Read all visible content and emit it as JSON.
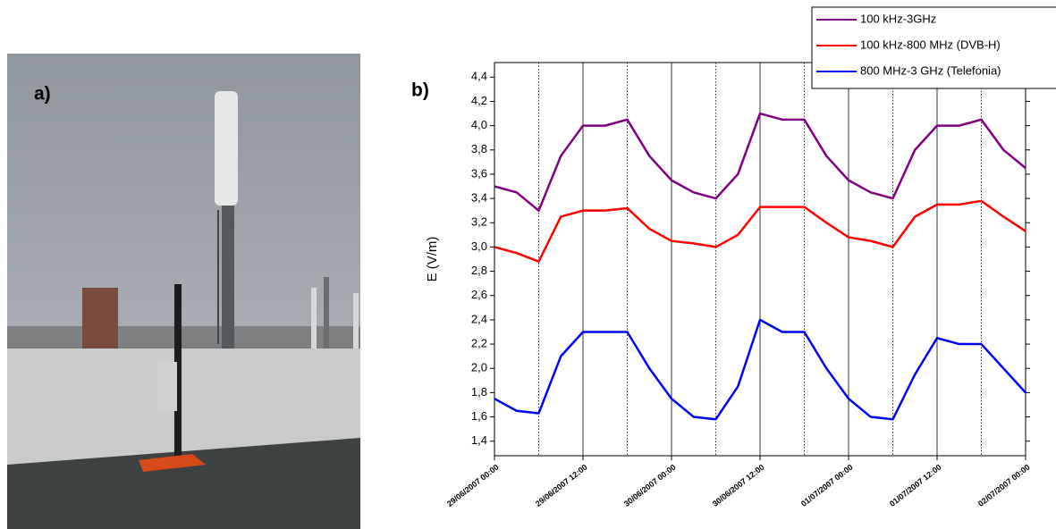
{
  "panels": {
    "photo_label": "a)",
    "chart_label": "b)"
  },
  "chart_data": {
    "type": "line",
    "y_label": "E (V/m)",
    "x": [
      0,
      3,
      6,
      9,
      12,
      15,
      18,
      21,
      24,
      27,
      30,
      33,
      36,
      39,
      42,
      45,
      48,
      51,
      54,
      57,
      60,
      63,
      66,
      69,
      72
    ],
    "series": [
      {
        "name": "100 kHz-3GHz",
        "color": "#800080",
        "values": [
          3.5,
          3.45,
          3.3,
          3.75,
          4.0,
          4.0,
          4.05,
          3.75,
          3.55,
          3.45,
          3.4,
          3.6,
          4.1,
          4.05,
          4.05,
          3.75,
          3.55,
          3.45,
          3.4,
          3.8,
          4.0,
          4.0,
          4.05,
          3.8,
          3.65
        ]
      },
      {
        "name": "100 kHz-800 MHz (DVB-H)",
        "color": "#ff0000",
        "values": [
          3.0,
          2.95,
          2.88,
          3.25,
          3.3,
          3.3,
          3.32,
          3.15,
          3.05,
          3.03,
          3.0,
          3.1,
          3.33,
          3.33,
          3.33,
          3.2,
          3.08,
          3.05,
          3.0,
          3.25,
          3.35,
          3.35,
          3.38,
          3.25,
          3.13
        ]
      },
      {
        "name": "800 MHz-3 GHz (Telefonia)",
        "color": "#0000ff",
        "values": [
          1.75,
          1.65,
          1.63,
          2.1,
          2.3,
          2.3,
          2.3,
          2.0,
          1.75,
          1.6,
          1.58,
          1.85,
          2.4,
          2.3,
          2.3,
          2.0,
          1.75,
          1.6,
          1.58,
          1.95,
          2.25,
          2.2,
          2.2,
          2.0,
          1.8
        ]
      }
    ],
    "xlim": [
      0,
      72
    ],
    "xticks": [
      {
        "value": 0,
        "label": "29/06/2007 00:00"
      },
      {
        "value": 12,
        "label": "29/06/2007 12:00"
      },
      {
        "value": 24,
        "label": "30/06/2007 00:00"
      },
      {
        "value": 36,
        "label": "30/06/2007 12:00"
      },
      {
        "value": 48,
        "label": "01/07/2007 00:00"
      },
      {
        "value": 60,
        "label": "01/07/2007 12:00"
      },
      {
        "value": 72,
        "label": "02/07/2007 00:00"
      }
    ],
    "x_minor_grid": [
      6,
      18,
      30,
      42,
      54,
      66
    ],
    "ylim": [
      1.28,
      4.52
    ],
    "yticks": [
      {
        "value": 1.4,
        "label": "1,4"
      },
      {
        "value": 1.6,
        "label": "1,6"
      },
      {
        "value": 1.8,
        "label": "1,8"
      },
      {
        "value": 2.0,
        "label": "2,0"
      },
      {
        "value": 2.2,
        "label": "2,2"
      },
      {
        "value": 2.4,
        "label": "2,4"
      },
      {
        "value": 2.6,
        "label": "2,6"
      },
      {
        "value": 2.8,
        "label": "2,8"
      },
      {
        "value": 3.0,
        "label": "3,0"
      },
      {
        "value": 3.2,
        "label": "3,2"
      },
      {
        "value": 3.4,
        "label": "3,4"
      },
      {
        "value": 3.6,
        "label": "3,6"
      },
      {
        "value": 3.8,
        "label": "3,8"
      },
      {
        "value": 4.0,
        "label": "4,0"
      },
      {
        "value": 4.2,
        "label": "4,2"
      },
      {
        "value": 4.4,
        "label": "4,4"
      }
    ],
    "grid": true,
    "legend": "top-right"
  }
}
